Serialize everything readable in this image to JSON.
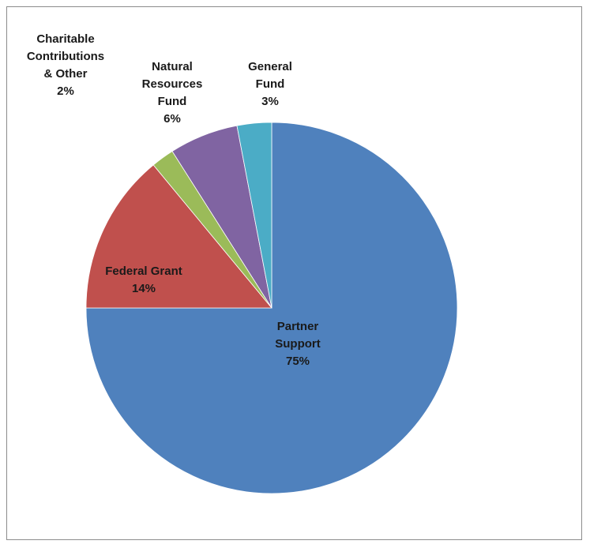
{
  "chart_data": {
    "type": "pie",
    "start_angle_deg": 0,
    "direction": "clockwise",
    "slices": [
      {
        "label": [
          "Partner",
          "Support"
        ],
        "value": 75,
        "display": "75%",
        "color": "#4F81BD"
      },
      {
        "label": [
          "Federal Grant"
        ],
        "value": 14,
        "display": "14%",
        "color": "#C0504D"
      },
      {
        "label": [
          "Charitable",
          "Contributions",
          "& Other"
        ],
        "value": 2,
        "display": "2%",
        "color": "#9BBB59"
      },
      {
        "label": [
          "Natural",
          "Resources",
          "Fund"
        ],
        "value": 6,
        "display": "6%",
        "color": "#8064A2"
      },
      {
        "label": [
          "General",
          "Fund"
        ],
        "value": 3,
        "display": "3%",
        "color": "#4BACC6"
      }
    ]
  }
}
